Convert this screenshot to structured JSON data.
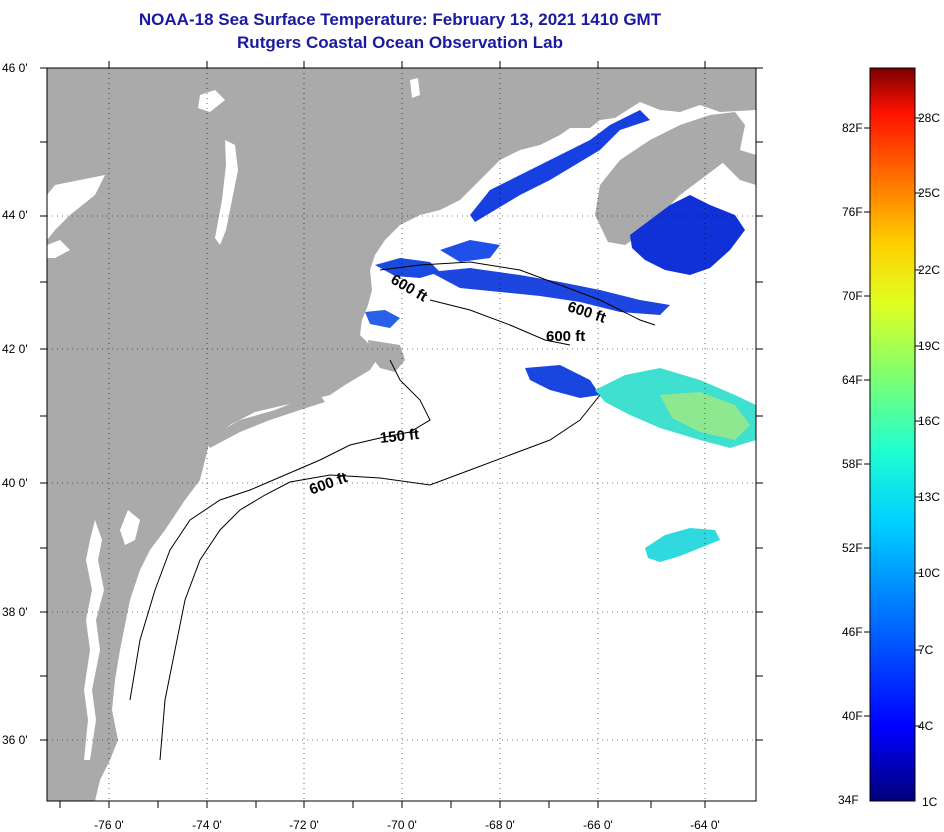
{
  "title": {
    "line1": "NOAA-18 Sea Surface Temperature:  February 13, 2021 1410 GMT",
    "line2": "Rutgers Coastal Ocean Observation Lab"
  },
  "lat_labels": [
    "46 0'",
    "44 0'",
    "42 0'",
    "40 0'",
    "38 0'",
    "36 0'"
  ],
  "lon_labels": [
    "-76 0'",
    "-74 0'",
    "-72 0'",
    "-70 0'",
    "-68 0'",
    "-66 0'",
    "-64 0'"
  ],
  "contours": {
    "c600a": "600 ft",
    "c600b": "600 ft",
    "c600c": "600 ft",
    "c150": "150 ft",
    "c600d": "600 ft"
  },
  "colorbar": {
    "fahrenheit": [
      "82F",
      "76F",
      "70F",
      "64F",
      "58F",
      "52F",
      "46F",
      "40F",
      "34F"
    ],
    "celsius": [
      "28C",
      "25C",
      "22C",
      "19C",
      "16C",
      "13C",
      "10C",
      "7C",
      "4C",
      "1C"
    ],
    "colors": [
      "#00007a",
      "#0000ff",
      "#0070ff",
      "#00d0ff",
      "#20ffd0",
      "#80ff70",
      "#e0ff20",
      "#ffd000",
      "#ff7000",
      "#ff1000",
      "#7a0000"
    ]
  },
  "land_color": "#aaaaaa"
}
